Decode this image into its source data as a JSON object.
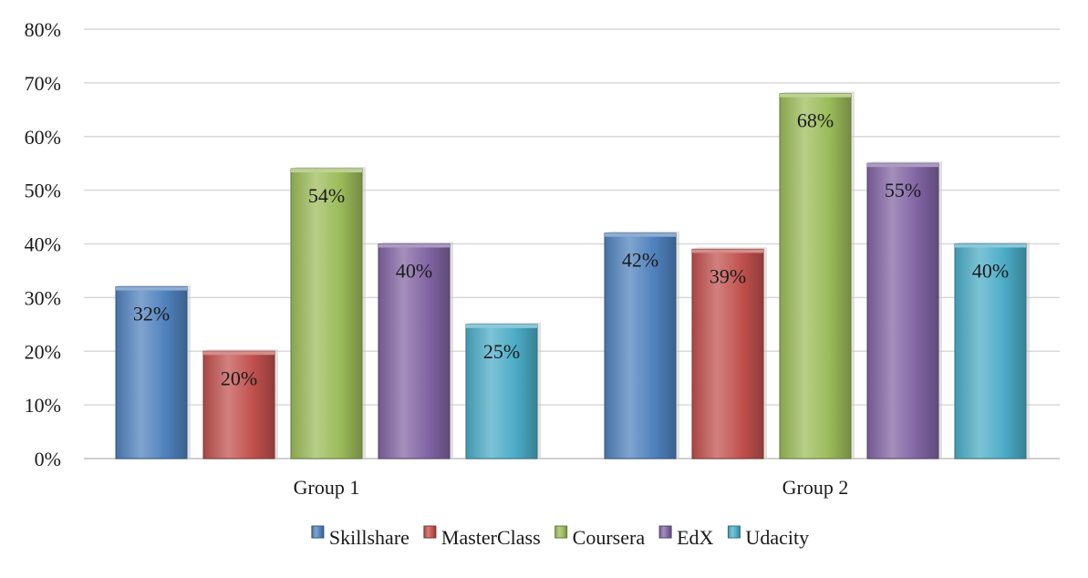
{
  "chart_data": {
    "type": "bar",
    "categories": [
      "Group 1",
      "Group 2"
    ],
    "series": [
      {
        "name": "Skillshare",
        "values": [
          32,
          42
        ],
        "color": "#4f81bd"
      },
      {
        "name": "MasterClass",
        "values": [
          20,
          39
        ],
        "color": "#c0504d"
      },
      {
        "name": "Coursera",
        "values": [
          54,
          68
        ],
        "color": "#9bbb59"
      },
      {
        "name": "EdX",
        "values": [
          40,
          55
        ],
        "color": "#8064a2"
      },
      {
        "name": "Udacity",
        "values": [
          25,
          40
        ],
        "color": "#4bacc6"
      }
    ],
    "value_format": "percent",
    "ylim": [
      0,
      80
    ],
    "yticks": [
      0,
      10,
      20,
      30,
      40,
      50,
      60,
      70,
      80
    ],
    "ytick_labels": [
      "0%",
      "10%",
      "20%",
      "30%",
      "40%",
      "50%",
      "60%",
      "70%",
      "80%"
    ],
    "data_labels": [
      [
        "32%",
        "42%"
      ],
      [
        "20%",
        "39%"
      ],
      [
        "54%",
        "68%"
      ],
      [
        "40%",
        "55%"
      ],
      [
        "25%",
        "40%"
      ]
    ],
    "grid": true,
    "legend_position": "bottom",
    "title": "",
    "xlabel": "",
    "ylabel": ""
  }
}
